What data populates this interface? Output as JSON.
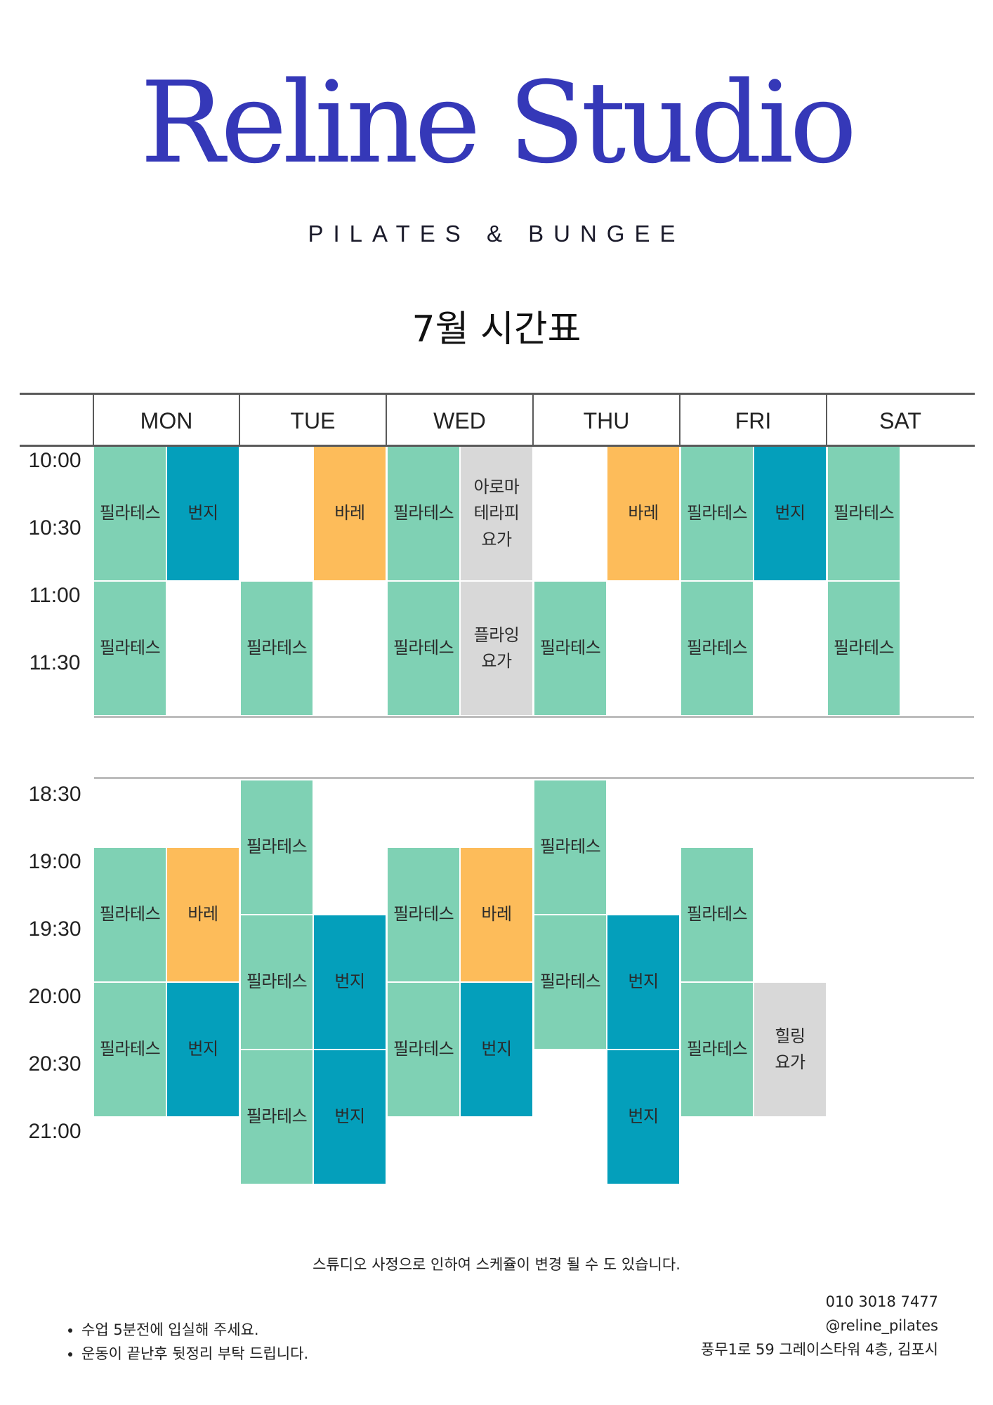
{
  "header": {
    "logo_text": "Reline Studio",
    "subtitle": "PILATES & BUNGEE",
    "title": "7월 시간표"
  },
  "days": [
    "MON",
    "TUE",
    "WED",
    "THU",
    "FRI",
    "SAT"
  ],
  "times": {
    "morning": [
      "10:00",
      "10:30",
      "11:00",
      "11:30"
    ],
    "evening": [
      "18:30",
      "19:00",
      "19:30",
      "20:00",
      "20:30",
      "21:00"
    ]
  },
  "colors": {
    "logo": "#3538b8",
    "pilates": "#7fd1b4",
    "bungee": "#049fbb",
    "barre": "#fdbc5a",
    "yoga": "#d8d8d8"
  },
  "schedule": {
    "morning": [
      {
        "day": "MON",
        "slot": "a",
        "start": "10:00",
        "end": "11:00",
        "type": "pilates",
        "label": "필라테스"
      },
      {
        "day": "MON",
        "slot": "b",
        "start": "10:00",
        "end": "11:00",
        "type": "bungee",
        "label": "번지"
      },
      {
        "day": "TUE",
        "slot": "b",
        "start": "10:00",
        "end": "11:00",
        "type": "barre",
        "label": "바레"
      },
      {
        "day": "WED",
        "slot": "a",
        "start": "10:00",
        "end": "11:00",
        "type": "pilates",
        "label": "필라테스"
      },
      {
        "day": "WED",
        "slot": "b",
        "start": "10:00",
        "end": "11:00",
        "type": "yoga",
        "label": "아로마\n테라피\n요가"
      },
      {
        "day": "THU",
        "slot": "b",
        "start": "10:00",
        "end": "11:00",
        "type": "barre",
        "label": "바레"
      },
      {
        "day": "FRI",
        "slot": "a",
        "start": "10:00",
        "end": "11:00",
        "type": "pilates",
        "label": "필라테스"
      },
      {
        "day": "FRI",
        "slot": "b",
        "start": "10:00",
        "end": "11:00",
        "type": "bungee",
        "label": "번지"
      },
      {
        "day": "SAT",
        "slot": "a",
        "start": "10:00",
        "end": "11:00",
        "type": "pilates",
        "label": "필라테스"
      },
      {
        "day": "MON",
        "slot": "a",
        "start": "11:00",
        "end": "12:00",
        "type": "pilates",
        "label": "필라테스"
      },
      {
        "day": "TUE",
        "slot": "a",
        "start": "11:00",
        "end": "12:00",
        "type": "pilates",
        "label": "필라테스"
      },
      {
        "day": "WED",
        "slot": "a",
        "start": "11:00",
        "end": "12:00",
        "type": "pilates",
        "label": "필라테스"
      },
      {
        "day": "WED",
        "slot": "b",
        "start": "11:00",
        "end": "12:00",
        "type": "yoga",
        "label": "플라잉\n요가"
      },
      {
        "day": "THU",
        "slot": "a",
        "start": "11:00",
        "end": "12:00",
        "type": "pilates",
        "label": "필라테스"
      },
      {
        "day": "FRI",
        "slot": "a",
        "start": "11:00",
        "end": "12:00",
        "type": "pilates",
        "label": "필라테스"
      },
      {
        "day": "SAT",
        "slot": "a",
        "start": "11:00",
        "end": "12:00",
        "type": "pilates",
        "label": "필라테스"
      }
    ],
    "evening": [
      {
        "day": "MON",
        "slot": "a",
        "start": "19:00",
        "end": "20:00",
        "type": "pilates",
        "label": "필라테스"
      },
      {
        "day": "MON",
        "slot": "b",
        "start": "19:00",
        "end": "20:00",
        "type": "barre",
        "label": "바레"
      },
      {
        "day": "MON",
        "slot": "a",
        "start": "20:00",
        "end": "21:00",
        "type": "pilates",
        "label": "필라테스"
      },
      {
        "day": "MON",
        "slot": "b",
        "start": "20:00",
        "end": "21:00",
        "type": "bungee",
        "label": "번지"
      },
      {
        "day": "TUE",
        "slot": "a",
        "start": "18:30",
        "end": "19:30",
        "type": "pilates",
        "label": "필라테스"
      },
      {
        "day": "TUE",
        "slot": "a",
        "start": "19:30",
        "end": "20:30",
        "type": "pilates",
        "label": "필라테스"
      },
      {
        "day": "TUE",
        "slot": "b",
        "start": "19:30",
        "end": "20:30",
        "type": "bungee",
        "label": "번지"
      },
      {
        "day": "TUE",
        "slot": "a",
        "start": "20:30",
        "end": "21:30",
        "type": "pilates",
        "label": "필라테스"
      },
      {
        "day": "TUE",
        "slot": "b",
        "start": "20:30",
        "end": "21:30",
        "type": "bungee",
        "label": "번지"
      },
      {
        "day": "WED",
        "slot": "a",
        "start": "19:00",
        "end": "20:00",
        "type": "pilates",
        "label": "필라테스"
      },
      {
        "day": "WED",
        "slot": "b",
        "start": "19:00",
        "end": "20:00",
        "type": "barre",
        "label": "바레"
      },
      {
        "day": "WED",
        "slot": "a",
        "start": "20:00",
        "end": "21:00",
        "type": "pilates",
        "label": "필라테스"
      },
      {
        "day": "WED",
        "slot": "b",
        "start": "20:00",
        "end": "21:00",
        "type": "bungee",
        "label": "번지"
      },
      {
        "day": "THU",
        "slot": "a",
        "start": "18:30",
        "end": "19:30",
        "type": "pilates",
        "label": "필라테스"
      },
      {
        "day": "THU",
        "slot": "a",
        "start": "19:30",
        "end": "20:30",
        "type": "pilates",
        "label": "필라테스"
      },
      {
        "day": "THU",
        "slot": "b",
        "start": "19:30",
        "end": "20:30",
        "type": "bungee",
        "label": "번지"
      },
      {
        "day": "THU",
        "slot": "b",
        "start": "20:30",
        "end": "21:30",
        "type": "bungee",
        "label": "번지"
      },
      {
        "day": "FRI",
        "slot": "a",
        "start": "19:00",
        "end": "20:00",
        "type": "pilates",
        "label": "필라테스"
      },
      {
        "day": "FRI",
        "slot": "a",
        "start": "20:00",
        "end": "21:00",
        "type": "pilates",
        "label": "필라테스"
      },
      {
        "day": "FRI",
        "slot": "b",
        "start": "20:00",
        "end": "21:00",
        "type": "yoga",
        "label": "힐링\n요가"
      }
    ]
  },
  "footer": {
    "notice": "스튜디오 사정으로 인하여 스케쥴이 변경 될 수 도 있습니다.",
    "rules": [
      "수업 5분전에 입실해 주세요.",
      "운동이 끝난후 뒷정리 부탁 드립니다."
    ],
    "phone": "010 3018 7477",
    "instagram": "@reline_pilates",
    "address": "풍무1로 59 그레이스타워 4층, 김포시"
  }
}
